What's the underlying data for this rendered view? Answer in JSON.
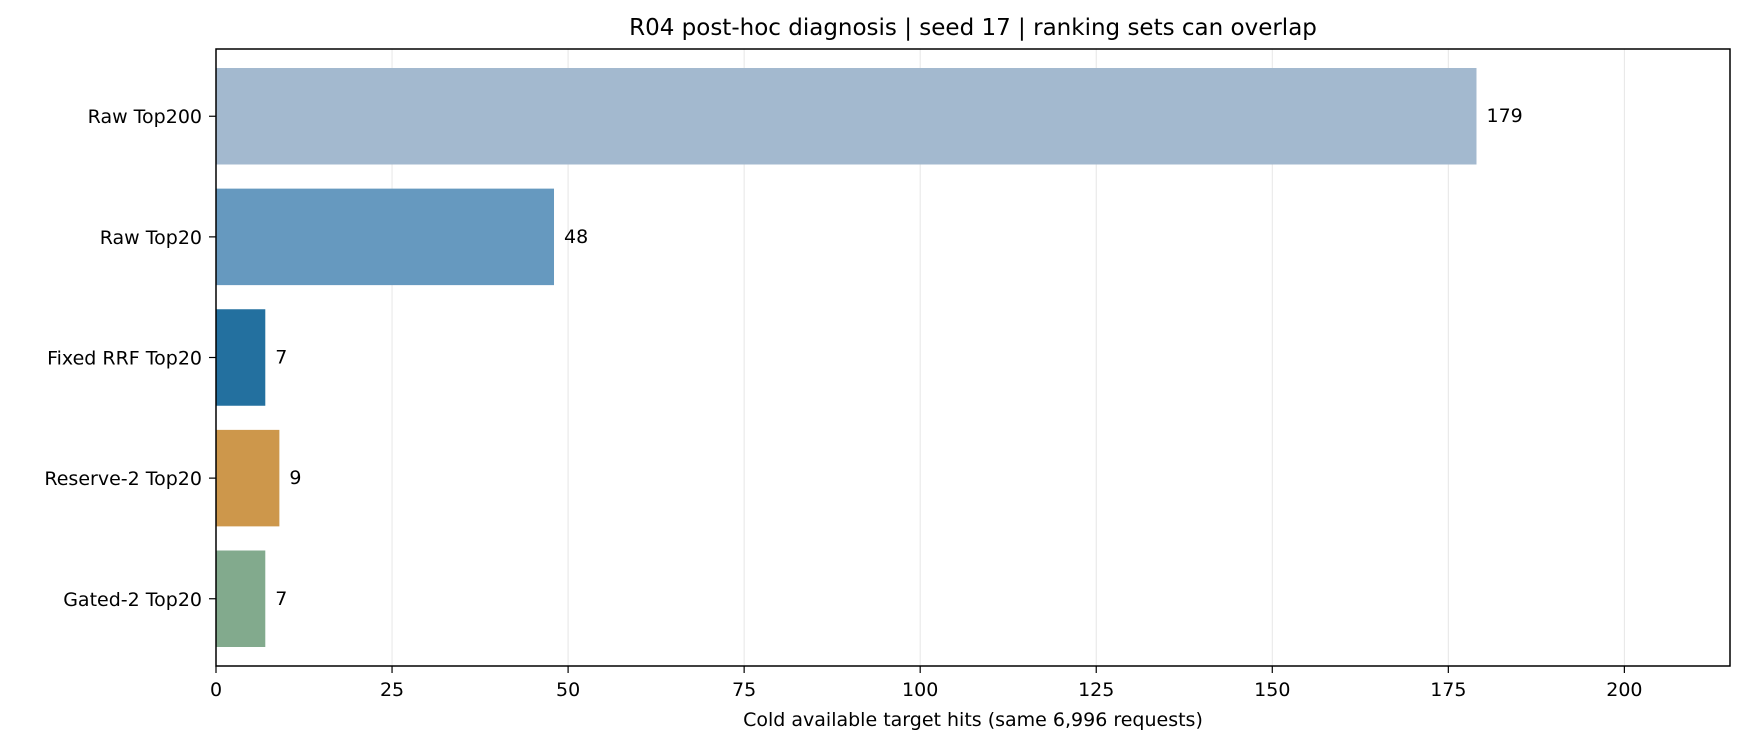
{
  "chart_data": {
    "type": "bar",
    "orientation": "horizontal",
    "title": "R04 post-hoc diagnosis | seed 17 | ranking sets can overlap",
    "xlabel": "Cold available target hits (same 6,996 requests)",
    "ylabel": "",
    "categories": [
      "Raw Top200",
      "Raw Top20",
      "Fixed RRF Top20",
      "Reserve-2 Top20",
      "Gated-2 Top20"
    ],
    "values": [
      179,
      48,
      7,
      9,
      7
    ],
    "data_labels": [
      "179",
      "48",
      "7",
      "9",
      "7"
    ],
    "colors": [
      "#a3b9cf",
      "#6699bf",
      "#23709f",
      "#cd974b",
      "#82aa8d"
    ],
    "xlim": [
      0,
      215
    ],
    "xticks": [
      0,
      25,
      50,
      75,
      100,
      125,
      150,
      175,
      200
    ],
    "xtick_labels": [
      "0",
      "25",
      "50",
      "75",
      "100",
      "125",
      "150",
      "175",
      "200"
    ],
    "grid": "vertical",
    "legend": "none"
  }
}
